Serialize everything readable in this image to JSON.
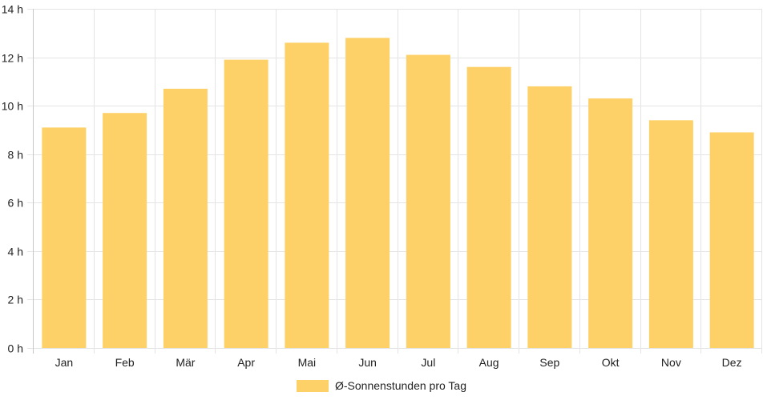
{
  "chart_data": {
    "type": "bar",
    "categories": [
      "Jan",
      "Feb",
      "Mär",
      "Apr",
      "Mai",
      "Jun",
      "Jul",
      "Aug",
      "Sep",
      "Okt",
      "Nov",
      "Dez"
    ],
    "series": [
      {
        "name": "Ø-Sonnenstunden pro Tag",
        "values": [
          9.1,
          9.7,
          10.7,
          11.9,
          12.6,
          12.8,
          12.1,
          11.6,
          10.8,
          10.3,
          9.4,
          8.9
        ]
      }
    ],
    "ylim": [
      0,
      14
    ],
    "yticks": [
      0,
      2,
      4,
      6,
      8,
      10,
      12,
      14
    ],
    "ytick_suffix": " h",
    "grid": true,
    "legend_position": "bottom",
    "bar_color": "#fdd168"
  }
}
